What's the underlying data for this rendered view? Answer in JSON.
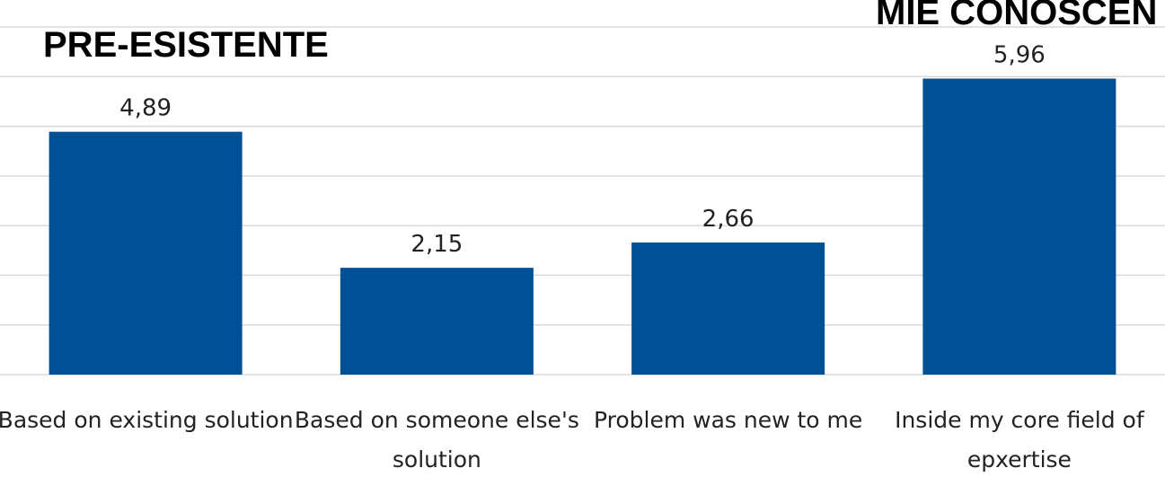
{
  "annotations": {
    "left_heading": "PRE-ESISTENTE",
    "right_heading": "MIE CONOSCEN"
  },
  "chart_data": {
    "type": "bar",
    "categories": [
      [
        "Based on existing solution"
      ],
      [
        "Based on someone else's",
        "solution"
      ],
      [
        "Problem was new to me"
      ],
      [
        "Inside my core field of",
        "epxertise"
      ]
    ],
    "values": [
      4.89,
      2.15,
      2.66,
      5.96
    ],
    "data_labels": [
      "4,89",
      "2,15",
      "2,66",
      "5,96"
    ],
    "ylim": [
      0,
      7
    ],
    "grid": true,
    "bar_color": "#005096"
  }
}
